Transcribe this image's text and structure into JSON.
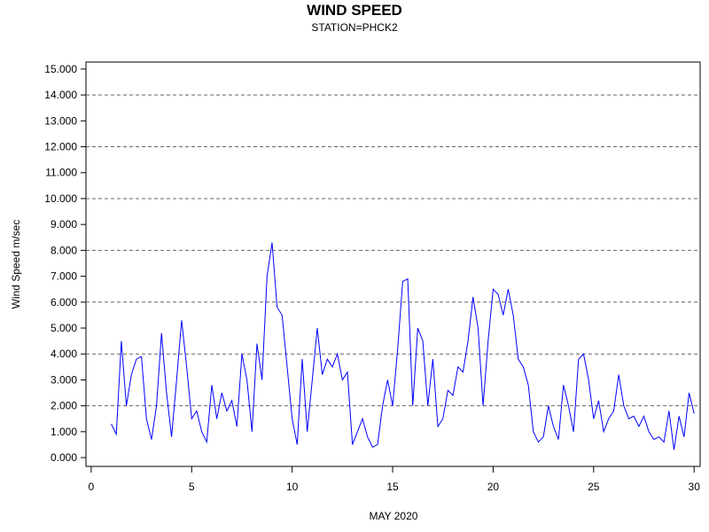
{
  "chart_data": {
    "type": "line",
    "title": "WIND SPEED",
    "subtitle": "STATION=PHCK2",
    "x_label": "MAY 2020",
    "y_label": "Wind Speed m/sec",
    "color": "#0000ff",
    "xlim": [
      -0.26,
      30.3
    ],
    "xticks": [
      0,
      5,
      10,
      15,
      20,
      25,
      30
    ],
    "ylim": [
      -0.34,
      15.27
    ],
    "yticks": [
      {
        "value": 0,
        "label": "0.000"
      },
      {
        "value": 1,
        "label": "1.000"
      },
      {
        "value": 2,
        "label": "2.000"
      },
      {
        "value": 3,
        "label": "3.000"
      },
      {
        "value": 4,
        "label": "4.000"
      },
      {
        "value": 5,
        "label": "5.000"
      },
      {
        "value": 6,
        "label": "6.000"
      },
      {
        "value": 7,
        "label": "7.000"
      },
      {
        "value": 8,
        "label": "8.000"
      },
      {
        "value": 9,
        "label": "9.000"
      },
      {
        "value": 10,
        "label": "10.000"
      },
      {
        "value": 11,
        "label": "11.000"
      },
      {
        "value": 12,
        "label": "12.000"
      },
      {
        "value": 13,
        "label": "13.000"
      },
      {
        "value": 14,
        "label": "14.000"
      },
      {
        "value": 15,
        "label": "15.000"
      }
    ],
    "gridlines": [
      2,
      4,
      6,
      8,
      10,
      12,
      14
    ],
    "x": [
      1,
      1.25,
      1.5,
      1.75,
      2,
      2.25,
      2.5,
      2.75,
      3,
      3.25,
      3.5,
      3.75,
      4,
      4.25,
      4.5,
      4.75,
      5,
      5.25,
      5.5,
      5.75,
      6,
      6.25,
      6.5,
      6.75,
      7,
      7.25,
      7.5,
      7.75,
      8,
      8.25,
      8.5,
      8.75,
      9,
      9.25,
      9.5,
      9.75,
      10,
      10.25,
      10.5,
      10.75,
      11,
      11.25,
      11.5,
      11.75,
      12,
      12.25,
      12.5,
      12.75,
      13,
      13.25,
      13.5,
      13.75,
      14,
      14.25,
      14.5,
      14.75,
      15,
      15.25,
      15.5,
      15.75,
      16,
      16.25,
      16.5,
      16.75,
      17,
      17.25,
      17.5,
      17.75,
      18,
      18.25,
      18.5,
      18.75,
      19,
      19.25,
      19.5,
      19.75,
      20,
      20.25,
      20.5,
      20.75,
      21,
      21.25,
      21.5,
      21.75,
      22,
      22.25,
      22.5,
      22.75,
      23,
      23.25,
      23.5,
      23.75,
      24,
      24.25,
      24.5,
      24.75,
      25,
      25.25,
      25.5,
      25.75,
      26,
      26.25,
      26.5,
      26.75,
      27,
      27.25,
      27.5,
      27.75,
      28,
      28.25,
      28.5,
      28.75,
      29,
      29.25,
      29.5,
      29.75,
      30
    ],
    "values": [
      1.3,
      0.9,
      4.5,
      2.0,
      3.2,
      3.8,
      3.9,
      1.5,
      0.7,
      2.0,
      4.8,
      2.5,
      0.8,
      3.0,
      5.3,
      3.5,
      1.5,
      1.8,
      1.0,
      0.6,
      2.8,
      1.5,
      2.5,
      1.8,
      2.2,
      1.2,
      4.0,
      3.0,
      1.0,
      4.4,
      3.0,
      7.0,
      8.3,
      5.8,
      5.5,
      3.5,
      1.5,
      0.5,
      3.8,
      1.0,
      3.0,
      5.0,
      3.2,
      3.8,
      3.5,
      4.0,
      3.0,
      3.3,
      0.5,
      1.0,
      1.5,
      0.8,
      0.4,
      0.5,
      2.0,
      3.0,
      2.0,
      4.2,
      6.8,
      6.9,
      2.0,
      5.0,
      4.5,
      2.0,
      3.8,
      1.2,
      1.5,
      2.6,
      2.4,
      3.5,
      3.3,
      4.5,
      6.2,
      5.0,
      2.0,
      4.5,
      6.5,
      6.3,
      5.5,
      6.5,
      5.5,
      3.8,
      3.5,
      2.8,
      1.0,
      0.6,
      0.8,
      2.0,
      1.2,
      0.7,
      2.8,
      2.0,
      1.0,
      3.8,
      4.0,
      3.0,
      1.5,
      2.2,
      1.0,
      1.5,
      1.8,
      3.2,
      2.0,
      1.5,
      1.6,
      1.2,
      1.6,
      1.0,
      0.7,
      0.8,
      0.6,
      1.8,
      0.3,
      1.6,
      0.8,
      2.5,
      1.7
    ]
  }
}
